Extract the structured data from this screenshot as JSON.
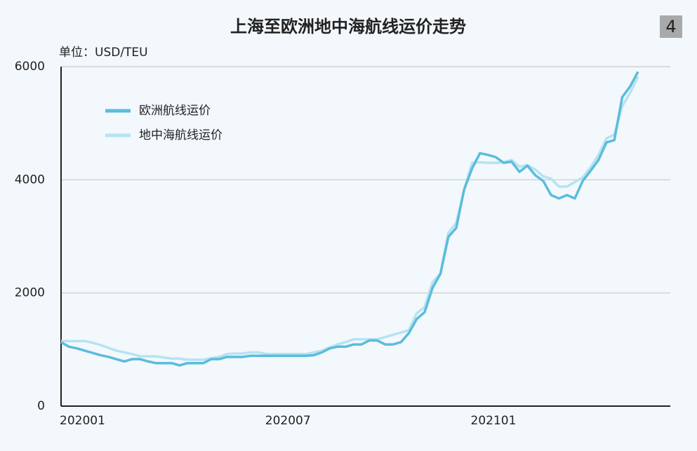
{
  "page_number": "4",
  "chart_data": {
    "type": "line",
    "title": "上海至欧洲地中海航线运价走势",
    "y_label": "单位：USD/TEU",
    "categories": [
      "202001",
      null,
      null,
      null,
      null,
      null,
      null,
      null,
      null,
      null,
      null,
      null,
      null,
      null,
      null,
      null,
      null,
      null,
      null,
      null,
      null,
      null,
      null,
      null,
      null,
      null,
      "202007",
      null,
      null,
      null,
      null,
      null,
      null,
      null,
      null,
      null,
      null,
      null,
      null,
      null,
      null,
      null,
      null,
      null,
      null,
      null,
      null,
      null,
      null,
      null,
      null,
      null,
      "202101",
      null,
      null,
      null,
      null,
      null,
      null,
      null,
      null,
      null,
      null,
      null,
      null,
      null,
      null,
      null,
      null,
      null,
      null,
      null,
      null,
      null
    ],
    "series": [
      {
        "name": "欧洲航线运价",
        "color": "#5bbcdc",
        "values": [
          1130,
          1050,
          1020,
          980,
          940,
          900,
          870,
          830,
          790,
          830,
          830,
          790,
          760,
          760,
          760,
          720,
          760,
          760,
          760,
          830,
          830,
          870,
          870,
          870,
          890,
          890,
          890,
          890,
          890,
          890,
          890,
          890,
          900,
          950,
          1020,
          1050,
          1050,
          1090,
          1090,
          1160,
          1160,
          1090,
          1090,
          1130,
          1290,
          1540,
          1660,
          2090,
          2340,
          2990,
          3150,
          3830,
          4200,
          4470,
          4440,
          4400,
          4300,
          4320,
          4140,
          4250,
          4080,
          3980,
          3730,
          3670,
          3730,
          3670,
          3980,
          4160,
          4350,
          4660,
          4700,
          5460,
          5650,
          5910
        ]
      },
      {
        "name": "地中海航线运价",
        "color": "#b5e3f2",
        "values": [
          1150,
          1150,
          1150,
          1150,
          1120,
          1080,
          1030,
          980,
          950,
          920,
          880,
          880,
          880,
          860,
          840,
          840,
          820,
          820,
          820,
          850,
          870,
          920,
          930,
          930,
          950,
          950,
          920,
          920,
          920,
          920,
          920,
          920,
          950,
          980,
          1040,
          1090,
          1130,
          1180,
          1180,
          1180,
          1180,
          1220,
          1260,
          1300,
          1340,
          1640,
          1750,
          2190,
          2340,
          3060,
          3240,
          3820,
          4300,
          4310,
          4300,
          4300,
          4310,
          4350,
          4230,
          4260,
          4180,
          4060,
          4020,
          3880,
          3880,
          3960,
          4040,
          4220,
          4440,
          4730,
          4800,
          5300,
          5540,
          5820
        ]
      }
    ],
    "ylim": [
      0,
      6000
    ],
    "yticks": [
      0,
      2000,
      4000,
      6000
    ],
    "grid": true,
    "legend": "upper left"
  }
}
